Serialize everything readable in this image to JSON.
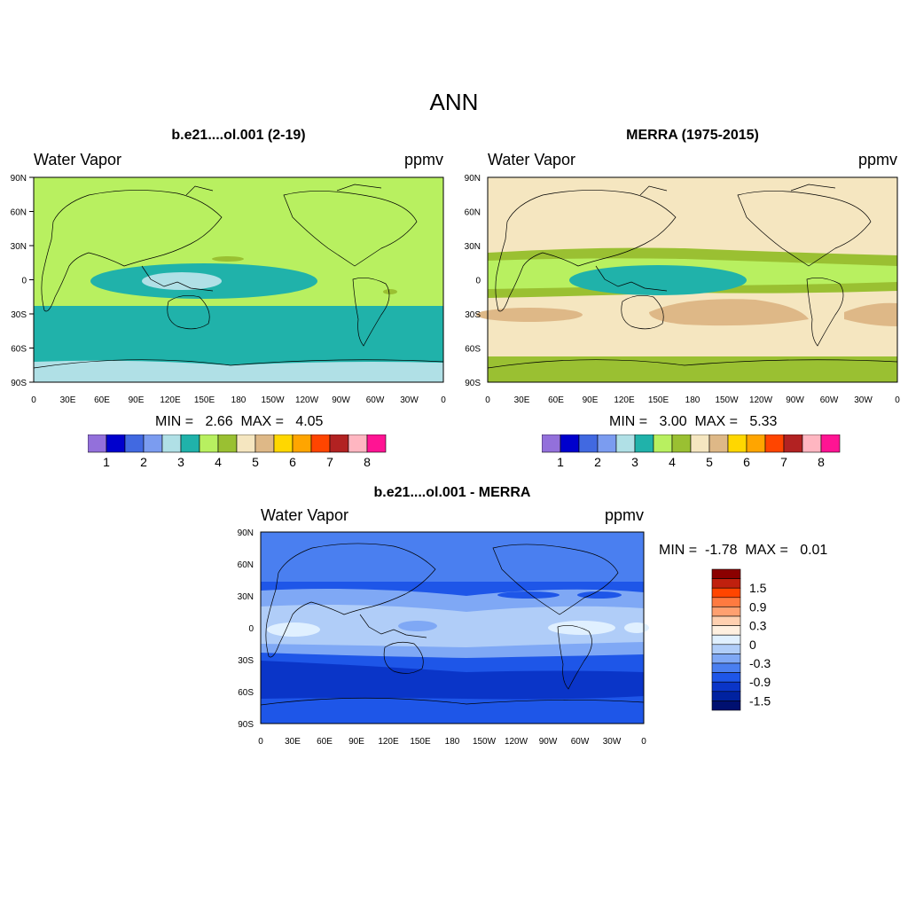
{
  "figure": {
    "title": "ANN"
  },
  "panels": [
    {
      "title": "b.e21....ol.001 (2-19)",
      "left_label": "Water Vapor",
      "right_label": "ppmv",
      "min_label": "MIN =",
      "min_value": "2.66",
      "max_label": "MAX =",
      "max_value": "4.05"
    },
    {
      "title": "MERRA (1975-2015)",
      "left_label": "Water Vapor",
      "right_label": "ppmv",
      "min_label": "MIN =",
      "min_value": "3.00",
      "max_label": "MAX =",
      "max_value": "5.33"
    },
    {
      "title": "b.e21....ol.001 - MERRA",
      "left_label": "Water Vapor",
      "right_label": "ppmv",
      "min_label": "MIN =",
      "min_value": "-1.78",
      "max_label": "MAX =",
      "max_value": "0.01"
    }
  ],
  "axes": {
    "lat_ticks": [
      "90N",
      "60N",
      "30N",
      "0",
      "30S",
      "60S",
      "90S"
    ],
    "lon_ticks": [
      "0",
      "30E",
      "60E",
      "90E",
      "120E",
      "150E",
      "180",
      "150W",
      "120W",
      "90W",
      "60W",
      "30W",
      "0"
    ]
  },
  "colorbar_top": {
    "colors": [
      "#9370db",
      "#0000cd",
      "#4169e1",
      "#7b9cf0",
      "#b0e0e6",
      "#20b2aa",
      "#b8f060",
      "#9ac032",
      "#f5e6c0",
      "#deb887",
      "#ffd700",
      "#ffa500",
      "#ff4500",
      "#b22222",
      "#ffb6c1",
      "#ff1493"
    ],
    "labels": [
      "1",
      "2",
      "3",
      "4",
      "5",
      "6",
      "7",
      "8"
    ]
  },
  "colorbar_diff": {
    "colors": [
      "#8b0000",
      "#c0200e",
      "#ff4500",
      "#ff7a40",
      "#ffa070",
      "#ffd0b0",
      "#fff0e0",
      "#e0f0ff",
      "#b0cdf8",
      "#7fa8f5",
      "#4a7ff0",
      "#1e56e8",
      "#0a35c8",
      "#0022a0",
      "#001070"
    ],
    "labels": [
      "1.5",
      "0.9",
      "0.3",
      "0",
      "-0.3",
      "-0.9",
      "-1.5"
    ]
  },
  "chart_data": [
    {
      "type": "heatmap",
      "title": "b.e21....ol.001 (2-19)",
      "variable": "Water Vapor",
      "units": "ppmv",
      "x_range": [
        0,
        360
      ],
      "y_range": [
        -90,
        90
      ],
      "min": 2.66,
      "max": 4.05,
      "contour_levels": [
        1,
        1.5,
        2,
        2.5,
        3,
        3.5,
        4,
        4.5,
        5,
        5.5,
        6,
        6.5,
        7,
        7.5,
        8
      ]
    },
    {
      "type": "heatmap",
      "title": "MERRA (1975-2015)",
      "variable": "Water Vapor",
      "units": "ppmv",
      "x_range": [
        0,
        360
      ],
      "y_range": [
        -90,
        90
      ],
      "min": 3.0,
      "max": 5.33,
      "contour_levels": [
        1,
        1.5,
        2,
        2.5,
        3,
        3.5,
        4,
        4.5,
        5,
        5.5,
        6,
        6.5,
        7,
        7.5,
        8
      ]
    },
    {
      "type": "heatmap",
      "title": "b.e21....ol.001 - MERRA",
      "variable": "Water Vapor",
      "units": "ppmv",
      "x_range": [
        0,
        360
      ],
      "y_range": [
        -90,
        90
      ],
      "min": -1.78,
      "max": 0.01,
      "contour_levels": [
        1.8,
        1.5,
        1.2,
        0.9,
        0.6,
        0.3,
        0.1,
        0,
        -0.1,
        -0.3,
        -0.6,
        -0.9,
        -1.2,
        -1.5,
        -1.8
      ]
    }
  ]
}
